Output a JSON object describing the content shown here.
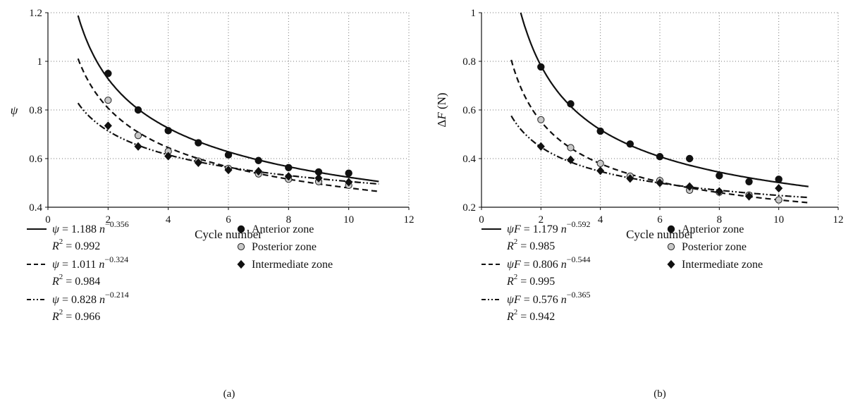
{
  "chart_data": [
    {
      "type": "scatter",
      "panel_label": "(a)",
      "xlabel": "Cycle number",
      "ylabel_symbol": "ψ",
      "ylabel_unit": "",
      "xlim": [
        0,
        12
      ],
      "ylim": [
        0.4,
        1.2
      ],
      "xticks": [
        "0",
        "2",
        "4",
        "6",
        "8",
        "10",
        "12"
      ],
      "yticks": [
        "0.4",
        "0.6",
        "0.8",
        "1",
        "1.2"
      ],
      "grid": "dotted",
      "fits": [
        {
          "coef": 1.188,
          "exp": -0.356,
          "dash": "solid",
          "lhs": "ψ",
          "coef_text": "1.188",
          "exp_text": "−0.356",
          "r2_text": "0.992"
        },
        {
          "coef": 1.011,
          "exp": -0.324,
          "dash": "dashed",
          "lhs": "ψ",
          "coef_text": "1.011",
          "exp_text": "−0.324",
          "r2_text": "0.984"
        },
        {
          "coef": 0.828,
          "exp": -0.214,
          "dash": "dash-dot-dot",
          "lhs": "ψ",
          "coef_text": "0.828",
          "exp_text": "−0.214",
          "r2_text": "0.966"
        }
      ],
      "series": [
        {
          "name": "Anterior zone",
          "marker": "circle-black",
          "x": [
            2,
            3,
            4,
            5,
            6,
            7,
            8,
            9,
            10
          ],
          "y": [
            0.95,
            0.8,
            0.715,
            0.665,
            0.615,
            0.592,
            0.563,
            0.545,
            0.54
          ]
        },
        {
          "name": "Posterior zone",
          "marker": "circle-gray",
          "x": [
            2,
            3,
            4,
            5,
            6,
            7,
            8,
            9,
            10
          ],
          "y": [
            0.84,
            0.695,
            0.63,
            0.59,
            0.56,
            0.537,
            0.515,
            0.505,
            0.49
          ]
        },
        {
          "name": "Intermediate zone",
          "marker": "diamond-black",
          "x": [
            2,
            3,
            4,
            5,
            6,
            7,
            8,
            9,
            10
          ],
          "y": [
            0.735,
            0.65,
            0.61,
            0.583,
            0.553,
            0.548,
            0.527,
            0.52,
            0.503
          ]
        }
      ]
    },
    {
      "type": "scatter",
      "panel_label": "(b)",
      "xlabel": "Cycle number",
      "ylabel_symbol": "ΔF",
      "ylabel_unit": "(N)",
      "xlim": [
        0,
        12
      ],
      "ylim": [
        0.2,
        1.0
      ],
      "xticks": [
        "0",
        "2",
        "4",
        "6",
        "8",
        "10",
        "12"
      ],
      "yticks": [
        "0.2",
        "0.4",
        "0.6",
        "0.8",
        "1"
      ],
      "grid": "dotted",
      "fits": [
        {
          "coef": 1.179,
          "exp": -0.592,
          "dash": "solid",
          "lhs": "ψF",
          "coef_text": "1.179",
          "exp_text": "−0.592",
          "r2_text": "0.985"
        },
        {
          "coef": 0.806,
          "exp": -0.544,
          "dash": "dashed",
          "lhs": "ψF",
          "coef_text": "0.806",
          "exp_text": "−0.544",
          "r2_text": "0.995"
        },
        {
          "coef": 0.576,
          "exp": -0.365,
          "dash": "dash-dot-dot",
          "lhs": "ψF",
          "coef_text": "0.576",
          "exp_text": "−0.365",
          "r2_text": "0.942"
        }
      ],
      "series": [
        {
          "name": "Anterior zone",
          "marker": "circle-black",
          "x": [
            2,
            3,
            4,
            5,
            6,
            7,
            8,
            9,
            10
          ],
          "y": [
            0.777,
            0.625,
            0.513,
            0.46,
            0.408,
            0.4,
            0.33,
            0.305,
            0.315
          ]
        },
        {
          "name": "Posterior zone",
          "marker": "circle-gray",
          "x": [
            2,
            3,
            4,
            5,
            6,
            7,
            8,
            9,
            10
          ],
          "y": [
            0.56,
            0.445,
            0.38,
            0.328,
            0.31,
            0.27,
            0.262,
            0.25,
            0.23
          ]
        },
        {
          "name": "Intermediate zone",
          "marker": "diamond-black",
          "x": [
            2,
            3,
            4,
            5,
            6,
            7,
            8,
            9,
            10
          ],
          "y": [
            0.45,
            0.395,
            0.35,
            0.318,
            0.3,
            0.285,
            0.265,
            0.245,
            0.278
          ]
        }
      ]
    }
  ],
  "legend_r2_prefix": "R",
  "legend_r2_power": "2",
  "legend_equals": " = ",
  "legend_n": "n"
}
